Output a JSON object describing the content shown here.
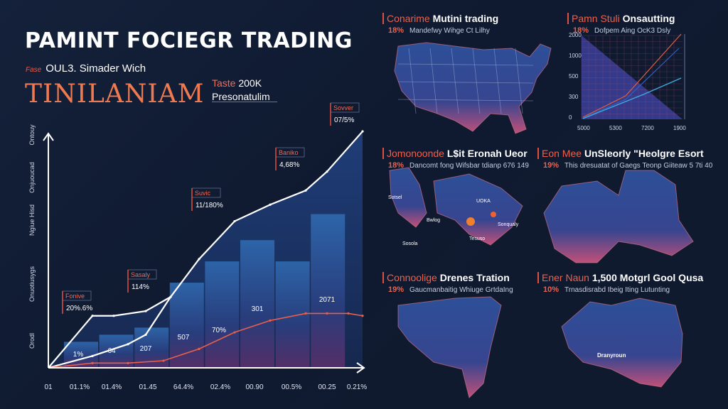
{
  "header": {
    "title": "PAMINT FOCIEGR TRADING",
    "tag": "Fase",
    "subtitle": "OUL3. Simader Wich",
    "big_title": "TINILANIAM",
    "stat_key": "Taste",
    "stat_value": "200K",
    "stat_label": "Presonatulim"
  },
  "colors": {
    "background": "#111c33",
    "accent": "#f07a50",
    "line_orange": "#e8604a",
    "bar_blue": "#2f62a8",
    "area_navy": "#1d3a6e"
  },
  "chart_data": {
    "type": "bar+line",
    "title": "",
    "x_tick_labels": [
      "01",
      "01.1%",
      "01.4%",
      "01.45",
      "64.4%",
      "02.4%",
      "00.90",
      "00.5%",
      "00.25",
      "0.21%"
    ],
    "y_axis_labels": [
      "Ontouy",
      "Onjuoucad",
      "Ngiue Hisd",
      "Onuotiusygs",
      "Orodl"
    ],
    "ylim": [
      0,
      100
    ],
    "bars": {
      "values": [
        11,
        14,
        17,
        36,
        45,
        54,
        45,
        65
      ]
    },
    "series": [
      {
        "color": "#ffffff",
        "x": [
          0,
          0.8,
          1.4,
          2.3,
          3,
          3.8,
          4.8,
          5.8,
          6.8,
          7.4,
          8.4
        ],
        "values": [
          0,
          22,
          22,
          24,
          30,
          46,
          62,
          69,
          75,
          83,
          100
        ]
      },
      {
        "color": "#ffffff",
        "x": [
          0,
          0.8,
          1.8,
          2.3,
          3
        ],
        "values": [
          0,
          5,
          10,
          14,
          30
        ]
      },
      {
        "color": "#e8604a",
        "x": [
          0,
          0.8,
          1.8,
          2.8,
          3.8,
          4.8,
          5.8,
          6.8,
          7.4,
          8,
          8.4
        ],
        "values": [
          0,
          2,
          2,
          3,
          8,
          15,
          20,
          23,
          23,
          23,
          22
        ]
      }
    ],
    "callouts": [
      {
        "label": "Fonive",
        "value": "20%.6%"
      },
      {
        "label": "Sasaly",
        "value": "114%"
      },
      {
        "label": "Suvic",
        "value": "11/180%"
      },
      {
        "label": "Baniko",
        "value": "4,68%"
      },
      {
        "label": "Sovver",
        "value": "07/5%"
      }
    ],
    "bar_labels": [
      "1%",
      "64",
      "207",
      "507",
      "70%",
      "301",
      "2071"
    ]
  },
  "panels": [
    {
      "key": "Conarime",
      "title": "Mutini trading",
      "pct": "18%",
      "desc": "Mandefwy Wihge Ct Lilhy"
    },
    {
      "key": "Pamn Stuli",
      "title": "Onsautting",
      "pct": "18%",
      "desc": "Dofpem Aing OcK3 Dsly",
      "y_ticks": [
        "2000",
        "1000",
        "500",
        "300",
        "0"
      ],
      "x_ticks": [
        "5000",
        "5300",
        "7200",
        "1900"
      ]
    },
    {
      "key": "Jomonoonde",
      "title": "L$it Eronah Ueor",
      "pct": "18%",
      "desc": "Dancomt fong Wifsbar tdianp 676 149",
      "labels": [
        "Sotsel",
        "UOKA",
        "Bwlog",
        "Sonqualy",
        "Tesuso",
        "Sosola"
      ]
    },
    {
      "key": "Eon Mee",
      "title": "UnSleorly \"Heolgre Esort",
      "pct": "19%",
      "desc": "This dresuatat of Gaegs Teonp Giiteaw 5 7ti 40"
    },
    {
      "key": "Connoolige",
      "title": "Drenes Tration",
      "pct": "19%",
      "desc": "Gaucmanbaitig Whiuge GrtdaIng"
    },
    {
      "key": "Ener Naun",
      "title": "1,500 Motgrl Gool Qusa",
      "pct": "10%",
      "desc": "Trnasdisrabd Ibeig Iting Lutunting",
      "labels": [
        "Dranyroun"
      ]
    }
  ]
}
